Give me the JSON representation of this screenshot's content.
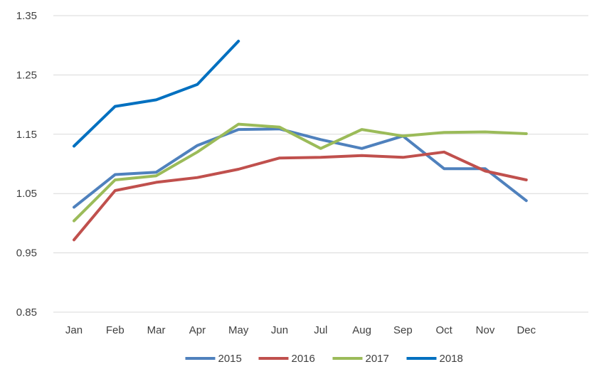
{
  "chart_data": {
    "type": "line",
    "title": "",
    "xlabel": "",
    "ylabel": "",
    "categories": [
      "Jan",
      "Feb",
      "Mar",
      "Apr",
      "May",
      "Jun",
      "Jul",
      "Aug",
      "Sep",
      "Oct",
      "Nov",
      "Dec"
    ],
    "y_ticks": [
      "0.85",
      "0.95",
      "1.05",
      "1.15",
      "1.25",
      "1.35"
    ],
    "ylim": [
      0.85,
      1.35
    ],
    "grid": "horizontal",
    "legend_position": "bottom",
    "series": [
      {
        "name": "2015",
        "color": "#4f81bd",
        "values": [
          1.027,
          1.082,
          1.086,
          1.131,
          1.158,
          1.159,
          1.141,
          1.126,
          1.147,
          1.092,
          1.092,
          1.038
        ]
      },
      {
        "name": "2016",
        "color": "#c0504d",
        "values": [
          0.972,
          1.055,
          1.069,
          1.077,
          1.091,
          1.11,
          1.111,
          1.114,
          1.111,
          1.12,
          1.088,
          1.073
        ]
      },
      {
        "name": "2017",
        "color": "#9bbb59",
        "values": [
          1.004,
          1.073,
          1.08,
          1.12,
          1.167,
          1.162,
          1.126,
          1.158,
          1.147,
          1.153,
          1.154,
          1.151
        ]
      },
      {
        "name": "2018",
        "color": "#0070c0",
        "values": [
          1.13,
          1.197,
          1.208,
          1.234,
          1.307,
          null,
          null,
          null,
          null,
          null,
          null,
          null
        ]
      }
    ]
  }
}
